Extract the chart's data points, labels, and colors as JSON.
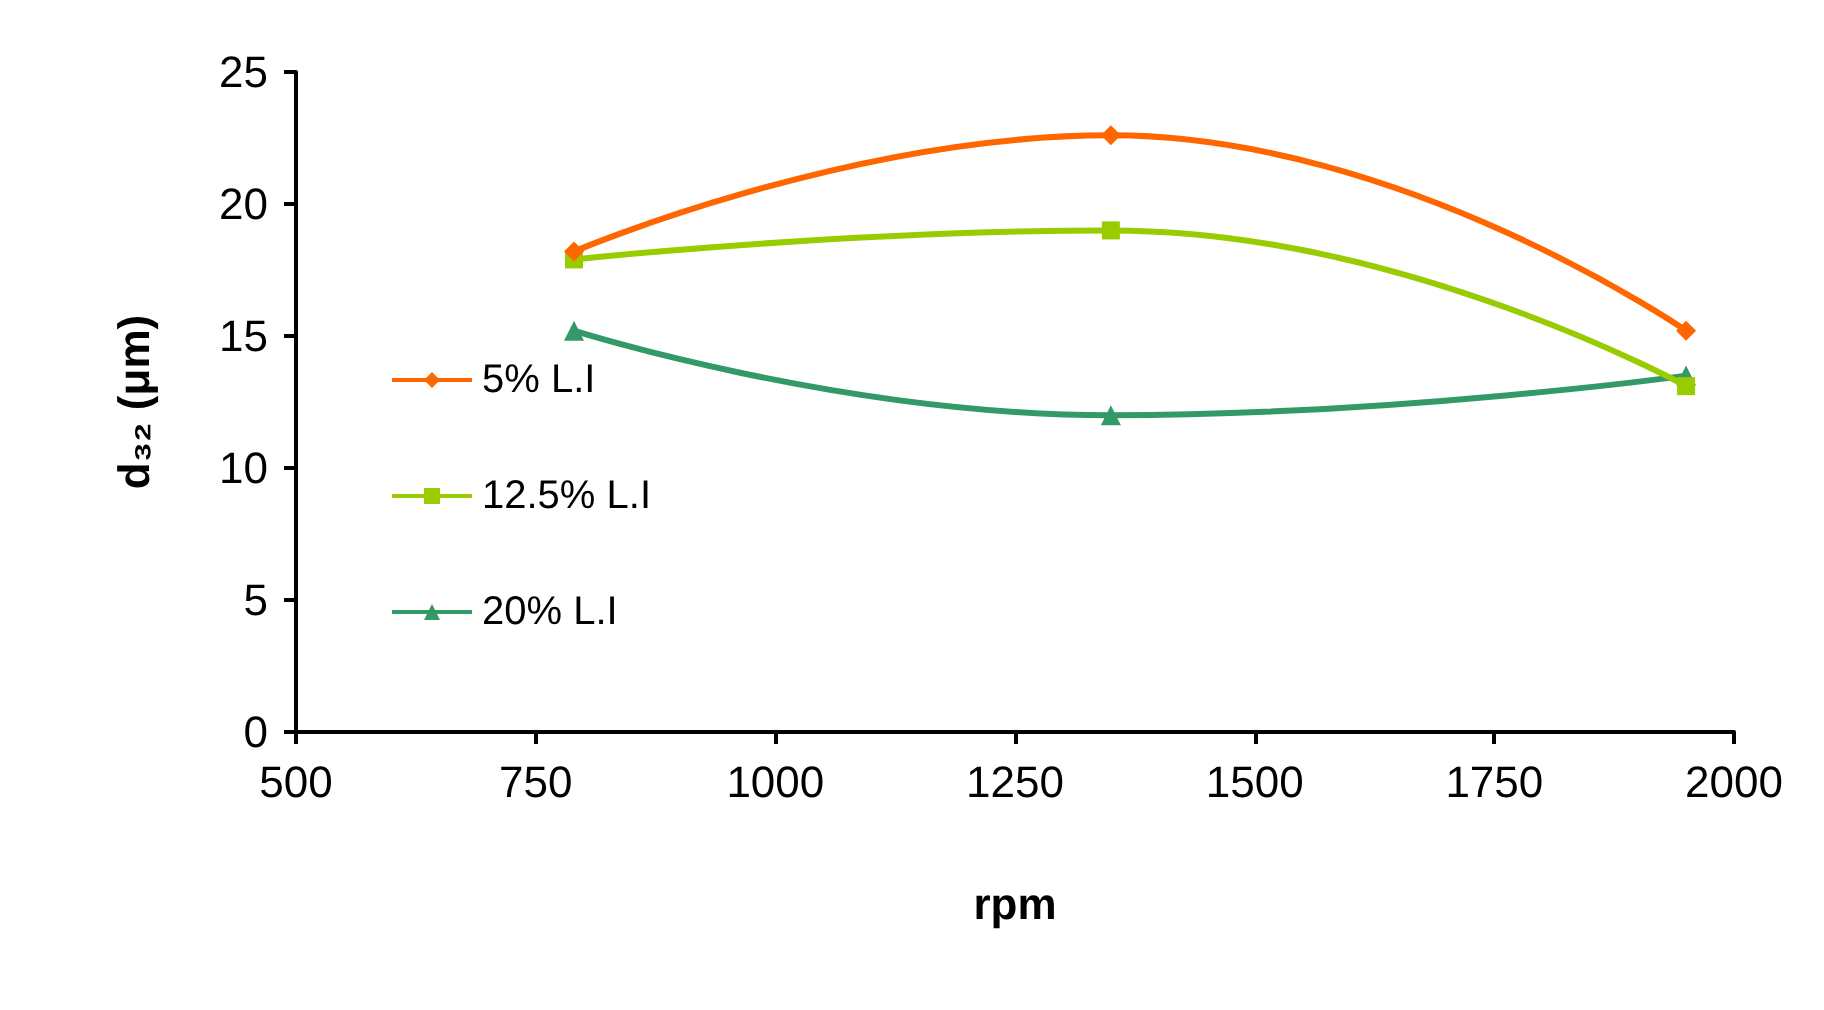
{
  "chart_data": {
    "type": "line",
    "xlabel": "rpm",
    "ylabel": "d₃₂ (μm)",
    "x": [
      790,
      1350,
      1950
    ],
    "series": [
      {
        "name": "5% L.I",
        "color": "#ff6600",
        "marker": "diamond",
        "values": [
          18.2,
          22.6,
          15.2
        ]
      },
      {
        "name": "12.5% L.I",
        "color": "#99cc00",
        "marker": "square",
        "values": [
          17.9,
          19.0,
          13.1
        ]
      },
      {
        "name": "20% L.I",
        "color": "#339966",
        "marker": "triangle",
        "values": [
          15.2,
          12.0,
          13.5
        ]
      }
    ],
    "xlim": [
      500,
      2000
    ],
    "xticks": [
      500,
      750,
      1000,
      1250,
      1500,
      1750,
      2000
    ],
    "ylim": [
      0,
      25
    ],
    "yticks": [
      0,
      5,
      10,
      15,
      20,
      25
    ],
    "grid": false,
    "legend": "left"
  }
}
